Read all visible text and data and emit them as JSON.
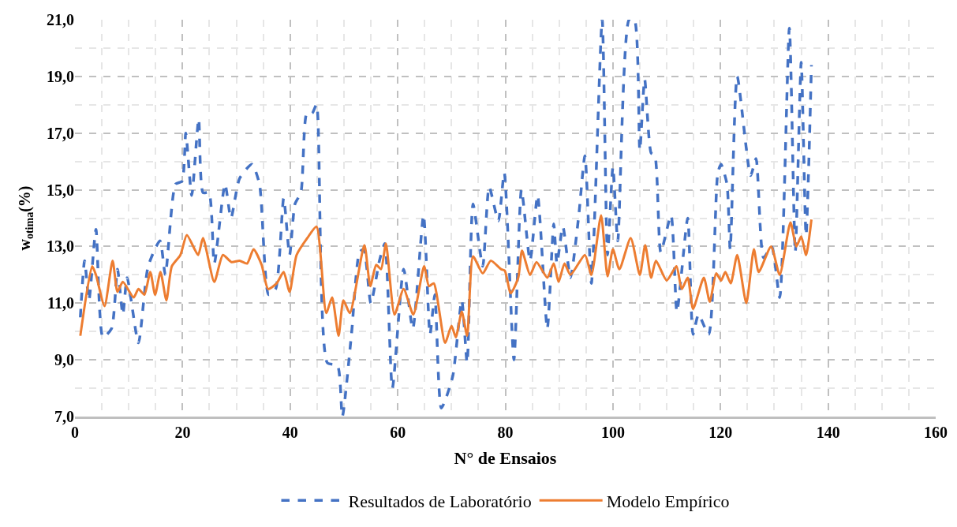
{
  "chart_data": {
    "type": "line",
    "xlabel": "N° de Ensaios",
    "ylabel": "w$_{otima}$(%)",
    "xlim": [
      0,
      160
    ],
    "xticks": [
      0,
      20,
      40,
      60,
      80,
      100,
      120,
      140,
      160
    ],
    "ylim": [
      7,
      21
    ],
    "yticks": [
      {
        "value": 7,
        "label": "7,0"
      },
      {
        "value": 9,
        "label": "9,0"
      },
      {
        "value": 11,
        "label": "11,0"
      },
      {
        "value": 13,
        "label": "13,0"
      },
      {
        "value": 15,
        "label": "15,0"
      },
      {
        "value": 17,
        "label": "17,0"
      },
      {
        "value": 19,
        "label": "19,0"
      },
      {
        "value": 21,
        "label": "21,0"
      }
    ],
    "grid": true,
    "legend": "bottom",
    "marker": "none",
    "series": [
      {
        "name": "Resultados de Laboratório",
        "color": "#4472c4",
        "line_style": "dashed",
        "x": [
          1,
          1.8,
          2.6,
          3.9,
          5.2,
          6.8,
          7.9,
          8.9,
          9.7,
          11.8,
          13.6,
          15.8,
          16.8,
          18.7,
          19.9,
          20.6,
          21.7,
          23.0,
          23.8,
          24.9,
          25.9,
          27.9,
          29.0,
          30.6,
          32.9,
          34.3,
          36.0,
          37.3,
          38.8,
          39.9,
          40.9,
          42.0,
          43.1,
          44.1,
          44.9,
          46.9,
          48.8,
          49.7,
          51.4,
          52.9,
          53.7,
          55.0,
          56.6,
          57.6,
          59.0,
          61.1,
          62.8,
          64.8,
          66.0,
          66.9,
          68.1,
          70.2,
          71.9,
          72.9,
          74.0,
          75.8,
          77.0,
          78.7,
          79.8,
          81.6,
          83.0,
          84.6,
          86.0,
          87.8,
          89.0,
          89.6,
          90.7,
          92.1,
          93.6,
          94.8,
          96.0,
          98.0,
          99.0,
          100.0,
          100.9,
          103.0,
          104.0,
          105.0,
          105.9,
          107.1,
          107.8,
          108.9,
          110.8,
          111.9,
          113.9,
          114.9,
          115.9,
          117.8,
          119.5,
          120.1,
          121.2,
          121.8,
          123.1,
          125.6,
          126.6,
          128.0,
          129.5,
          131.0,
          132.8,
          133.9,
          135.0,
          135.9,
          136.9
        ],
        "values": [
          10.5,
          12.5,
          11.1,
          13.6,
          9.8,
          10.1,
          12.2,
          10.6,
          11.9,
          9.6,
          12.3,
          13.2,
          12.0,
          15.2,
          15.3,
          17.0,
          14.8,
          17.5,
          14.9,
          14.9,
          12.4,
          15.2,
          14.0,
          15.4,
          15.9,
          15.2,
          11.3,
          11.5,
          14.7,
          12.7,
          14.5,
          14.9,
          17.7,
          17.7,
          18.0,
          8.9,
          8.8,
          7.0,
          9.9,
          12.8,
          12.9,
          11.0,
          12.5,
          13.1,
          8.0,
          12.2,
          10.1,
          14.1,
          9.9,
          11.3,
          7.3,
          8.4,
          11.1,
          8.9,
          14.5,
          12.3,
          15.1,
          13.9,
          15.6,
          9.0,
          15.0,
          12.5,
          14.8,
          10.1,
          13.8,
          12.4,
          13.7,
          11.9,
          14.0,
          16.2,
          11.7,
          21.0,
          12.7,
          15.8,
          13.2,
          21.0,
          21.0,
          16.4,
          18.9,
          16.3,
          16.2,
          12.8,
          14.1,
          10.7,
          14.0,
          9.9,
          10.6,
          9.9,
          15.6,
          15.9,
          15.2,
          12.9,
          19.0,
          15.5,
          16.1,
          12.6,
          13.0,
          11.2,
          20.7,
          12.8,
          19.5,
          13.4,
          19.4
        ]
      },
      {
        "name": "Modelo Empírico",
        "color": "#ed7d31",
        "line_style": "solid",
        "x": [
          1,
          3.2,
          3.9,
          5.5,
          7.0,
          7.9,
          8.9,
          10.9,
          11.8,
          12.9,
          14.0,
          14.9,
          15.9,
          17.0,
          18.0,
          19.6,
          20.8,
          22.9,
          23.8,
          25.9,
          27.5,
          29.1,
          30.6,
          32.0,
          33.2,
          34.7,
          35.9,
          37.5,
          38.8,
          39.9,
          41.2,
          43.2,
          44.9,
          46.7,
          47.8,
          49.0,
          49.9,
          51.1,
          53.8,
          54.9,
          56.0,
          56.9,
          57.8,
          59.4,
          61.1,
          62.9,
          64.9,
          65.8,
          66.7,
          68.8,
          70.0,
          70.8,
          71.9,
          72.9,
          74.0,
          75.8,
          77.3,
          79.2,
          79.9,
          81.0,
          82.4,
          83.1,
          84.6,
          85.8,
          87.8,
          89.0,
          89.9,
          91.0,
          92.1,
          94.8,
          96.0,
          97.8,
          99.0,
          100.0,
          101.2,
          103.3,
          105.0,
          106.0,
          107.1,
          108.0,
          110.0,
          111.8,
          112.8,
          113.9,
          114.9,
          116.9,
          118.0,
          119.2,
          120.1,
          120.9,
          121.9,
          123.1,
          124.8,
          126.2,
          127.1,
          129.4,
          131.0,
          133.0,
          134.1,
          135.0,
          135.9,
          136.9
        ],
        "values": [
          9.85,
          12.3,
          12.0,
          10.9,
          12.5,
          11.4,
          11.75,
          11.2,
          11.5,
          11.3,
          12.1,
          11.3,
          12.1,
          11.1,
          12.3,
          12.7,
          13.4,
          12.7,
          13.3,
          11.75,
          12.7,
          12.45,
          12.5,
          12.4,
          12.9,
          12.35,
          11.5,
          11.7,
          12.1,
          11.4,
          12.7,
          13.3,
          13.7,
          10.65,
          11.2,
          9.85,
          11.1,
          10.65,
          13.05,
          11.6,
          12.35,
          12.2,
          13.1,
          10.6,
          11.5,
          10.6,
          12.3,
          11.6,
          11.7,
          9.6,
          10.2,
          9.8,
          10.7,
          9.85,
          12.65,
          12.05,
          12.5,
          12.2,
          12.15,
          11.35,
          11.9,
          12.85,
          12.0,
          12.45,
          11.9,
          12.4,
          11.75,
          12.4,
          12.0,
          12.7,
          12.0,
          14.1,
          11.95,
          12.9,
          12.2,
          13.3,
          12.0,
          13.05,
          11.9,
          12.5,
          11.8,
          12.3,
          11.5,
          11.9,
          10.8,
          11.9,
          11.05,
          12.05,
          11.8,
          12.1,
          11.7,
          12.7,
          11.0,
          12.9,
          12.1,
          13.0,
          12.0,
          13.85,
          13.0,
          13.35,
          12.7,
          13.95
        ]
      }
    ]
  }
}
